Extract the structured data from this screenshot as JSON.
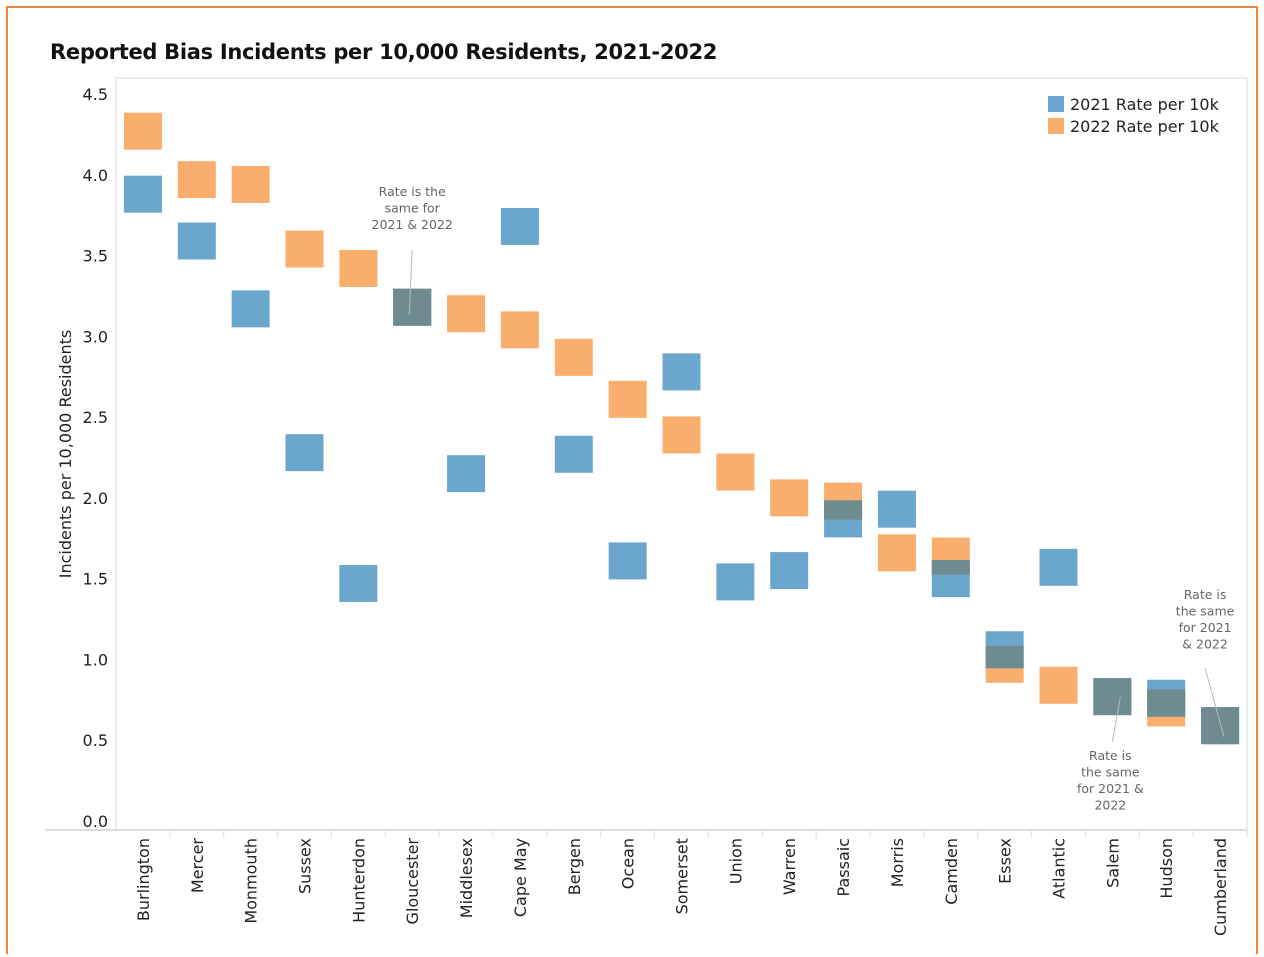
{
  "chart_data": {
    "type": "scatter",
    "title": "Reported Bias Incidents per 10,000 Residents, 2021-2022",
    "ylabel": "Incidents per 10,000 Residents",
    "ylim": [
      0,
      4.5
    ],
    "yticks": [
      "0.0",
      "0.5",
      "1.0",
      "1.5",
      "2.0",
      "2.5",
      "3.0",
      "3.5",
      "4.0",
      "4.5"
    ],
    "categories": [
      "Burlington",
      "Mercer",
      "Monmouth",
      "Sussex",
      "Hunterdon",
      "Gloucester",
      "Middlesex",
      "Cape May",
      "Bergen",
      "Ocean",
      "Somerset",
      "Union",
      "Warren",
      "Passaic",
      "Morris",
      "Camden",
      "Essex",
      "Atlantic",
      "Salem",
      "Hudson",
      "Cumberland"
    ],
    "series": [
      {
        "name": "2021 Rate per 10k",
        "color": "#6ba7cc",
        "values": [
          3.88,
          3.59,
          3.17,
          2.28,
          1.47,
          3.18,
          2.15,
          3.68,
          2.27,
          1.61,
          2.78,
          1.48,
          1.55,
          1.87,
          1.93,
          1.5,
          1.06,
          1.57,
          0.77,
          0.76,
          0.59
        ]
      },
      {
        "name": "2022 Rate per 10k",
        "color": "#f9ae6e",
        "values": [
          4.27,
          3.97,
          3.94,
          3.54,
          3.42,
          3.18,
          3.14,
          3.04,
          2.87,
          2.61,
          2.39,
          2.16,
          2.0,
          1.98,
          1.66,
          1.64,
          0.97,
          0.84,
          0.77,
          0.7,
          0.59
        ]
      }
    ],
    "overlap_color": "#6e8b8f",
    "legend_position": "top-right",
    "grid": false,
    "annotations": [
      {
        "category": "Gloucester",
        "lines": [
          "Rate is the",
          "same for",
          "2021 & 2022"
        ]
      },
      {
        "category": "Salem",
        "lines": [
          "Rate is",
          "the same",
          "for 2021 &",
          "2022"
        ]
      },
      {
        "category": "Cumberland",
        "lines": [
          "Rate is",
          "the same",
          "for 2021",
          "& 2022"
        ]
      }
    ]
  }
}
